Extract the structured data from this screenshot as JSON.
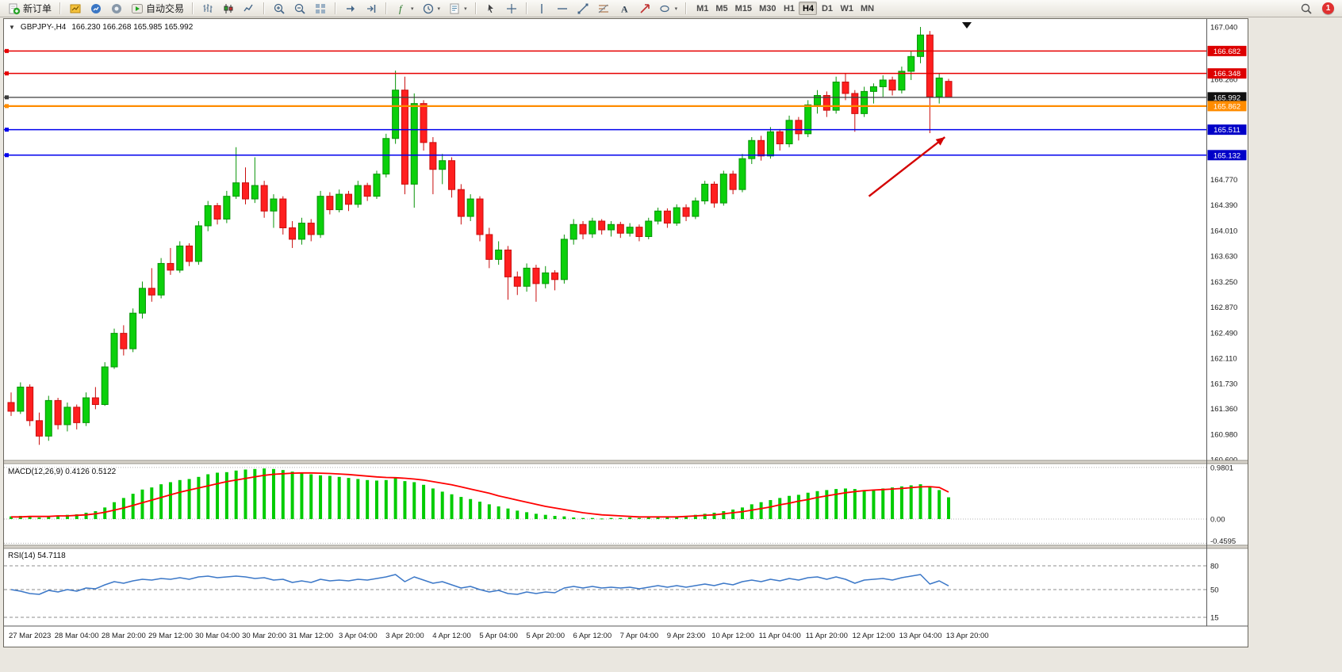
{
  "toolbar": {
    "new_order_label": "新订单",
    "autotrade_label": "自动交易",
    "timeframes": [
      "M1",
      "M5",
      "M15",
      "M30",
      "H1",
      "H4",
      "D1",
      "W1",
      "MN"
    ],
    "active_timeframe": "H4",
    "notification_count": "1",
    "icon_names": [
      "new-order",
      "charts",
      "market-watch",
      "navigator",
      "autotrade",
      "bar-chart",
      "candlestick-chart",
      "line-chart",
      "zoom-in",
      "zoom-out",
      "tile-windows",
      "auto-scroll",
      "chart-shift",
      "indicators",
      "periods",
      "templates",
      "cursor",
      "crosshair",
      "vertical-line",
      "horizontal-line",
      "trendline",
      "fibonacci",
      "text",
      "arrow-label",
      "shapes",
      "search",
      "notification"
    ]
  },
  "chart": {
    "symbol_title": "GBPJPY-,H4",
    "ohlc_display": "166.230 166.268 165.985 165.992"
  },
  "chart_data": {
    "type": "candlestick",
    "symbol": "GBPJPY-",
    "timeframe": "H4",
    "last_ohlc": {
      "open": 166.23,
      "high": 166.268,
      "low": 165.985,
      "close": 165.992
    },
    "colors": {
      "bull": "#0bd00b",
      "bull_stroke": "#089408",
      "bear": "#ff1f1f",
      "bear_stroke": "#c90e0e",
      "macd_hist": "#00cc00",
      "macd_signal": "#ff0000",
      "rsi": "#3c78c8"
    },
    "y_axis": {
      "min": 160.6,
      "max": 167.04,
      "ticks": [
        "167.040",
        "166.260",
        "164.770",
        "164.390",
        "164.010",
        "163.630",
        "163.250",
        "162.870",
        "162.490",
        "162.110",
        "161.730",
        "161.360",
        "160.980",
        "160.600"
      ]
    },
    "x_labels": [
      "27 Mar 2023",
      "28 Mar 04:00",
      "28 Mar 20:00",
      "29 Mar 12:00",
      "30 Mar 04:00",
      "30 Mar 20:00",
      "31 Mar 12:00",
      "3 Apr 04:00",
      "3 Apr 20:00",
      "4 Apr 12:00",
      "5 Apr 04:00",
      "5 Apr 20:00",
      "6 Apr 12:00",
      "7 Apr 04:00",
      "9 Apr 23:00",
      "10 Apr 12:00",
      "11 Apr 04:00",
      "11 Apr 20:00",
      "12 Apr 12:00",
      "13 Apr 04:00",
      "13 Apr 20:00"
    ],
    "price_lines": [
      {
        "price": 166.682,
        "label": "166.682",
        "color": "#e60000",
        "badge": "#dd0000",
        "width": 1.5
      },
      {
        "price": 166.348,
        "label": "166.348",
        "color": "#e60000",
        "badge": "#dd0000",
        "width": 1.5
      },
      {
        "price": 165.992,
        "label": "165.992",
        "color": "#3c3c3c",
        "badge": "#101010",
        "width": 1.2
      },
      {
        "price": 165.862,
        "label": "165.862",
        "color": "#ff8c00",
        "badge": "#ff8c00",
        "width": 2.2
      },
      {
        "price": 165.511,
        "label": "165.511",
        "color": "#0000ee",
        "badge": "#0000c8",
        "width": 1.5
      },
      {
        "price": 165.132,
        "label": "165.132",
        "color": "#0000ee",
        "badge": "#0000c8",
        "width": 1.5
      }
    ],
    "candles": [
      [
        161.45,
        161.6,
        161.25,
        161.32
      ],
      [
        161.32,
        161.75,
        161.28,
        161.68
      ],
      [
        161.68,
        161.72,
        161.1,
        161.18
      ],
      [
        161.18,
        161.3,
        160.82,
        160.95
      ],
      [
        160.95,
        161.55,
        160.88,
        161.48
      ],
      [
        161.48,
        161.52,
        161.05,
        161.12
      ],
      [
        161.12,
        161.45,
        161.02,
        161.38
      ],
      [
        161.38,
        161.42,
        161.05,
        161.15
      ],
      [
        161.15,
        161.6,
        161.1,
        161.52
      ],
      [
        161.52,
        161.68,
        161.35,
        161.42
      ],
      [
        161.42,
        162.05,
        161.4,
        161.98
      ],
      [
        161.98,
        162.55,
        161.95,
        162.48
      ],
      [
        162.48,
        162.6,
        162.15,
        162.25
      ],
      [
        162.25,
        162.85,
        162.2,
        162.78
      ],
      [
        162.78,
        163.25,
        162.7,
        163.15
      ],
      [
        163.15,
        163.45,
        162.95,
        163.05
      ],
      [
        163.05,
        163.6,
        163.0,
        163.52
      ],
      [
        163.52,
        163.75,
        163.35,
        163.42
      ],
      [
        163.42,
        163.85,
        163.38,
        163.78
      ],
      [
        163.78,
        163.82,
        163.48,
        163.55
      ],
      [
        163.55,
        164.15,
        163.5,
        164.08
      ],
      [
        164.08,
        164.45,
        164.0,
        164.38
      ],
      [
        164.38,
        164.42,
        164.1,
        164.18
      ],
      [
        164.18,
        164.6,
        164.12,
        164.52
      ],
      [
        164.52,
        165.25,
        164.48,
        164.72
      ],
      [
        164.72,
        164.95,
        164.4,
        164.48
      ],
      [
        164.48,
        165.1,
        164.42,
        164.68
      ],
      [
        164.68,
        164.75,
        164.2,
        164.3
      ],
      [
        164.3,
        164.55,
        164.05,
        164.48
      ],
      [
        164.48,
        164.52,
        163.95,
        164.05
      ],
      [
        164.05,
        164.15,
        163.75,
        163.88
      ],
      [
        163.88,
        164.2,
        163.8,
        164.12
      ],
      [
        164.12,
        164.18,
        163.85,
        163.95
      ],
      [
        163.95,
        164.6,
        163.9,
        164.52
      ],
      [
        164.52,
        164.58,
        164.25,
        164.32
      ],
      [
        164.32,
        164.62,
        164.28,
        164.55
      ],
      [
        164.55,
        164.6,
        164.3,
        164.4
      ],
      [
        164.4,
        164.75,
        164.35,
        164.68
      ],
      [
        164.68,
        164.72,
        164.45,
        164.52
      ],
      [
        164.52,
        164.9,
        164.48,
        164.85
      ],
      [
        164.85,
        165.45,
        164.8,
        165.38
      ],
      [
        165.38,
        166.39,
        165.3,
        166.1
      ],
      [
        166.1,
        166.3,
        164.55,
        164.7
      ],
      [
        164.7,
        166.05,
        164.35,
        165.9
      ],
      [
        165.9,
        165.95,
        165.2,
        165.32
      ],
      [
        165.32,
        165.4,
        164.55,
        164.92
      ],
      [
        164.92,
        165.15,
        164.7,
        165.05
      ],
      [
        165.05,
        165.1,
        164.5,
        164.62
      ],
      [
        164.62,
        164.7,
        164.1,
        164.22
      ],
      [
        164.22,
        164.55,
        164.15,
        164.48
      ],
      [
        164.48,
        164.52,
        163.85,
        163.95
      ],
      [
        163.95,
        164.05,
        163.45,
        163.58
      ],
      [
        163.58,
        163.85,
        163.5,
        163.72
      ],
      [
        163.72,
        163.78,
        162.98,
        163.32
      ],
      [
        163.32,
        163.4,
        163.05,
        163.18
      ],
      [
        163.18,
        163.52,
        163.1,
        163.45
      ],
      [
        163.45,
        163.5,
        162.95,
        163.22
      ],
      [
        163.22,
        163.48,
        163.15,
        163.38
      ],
      [
        163.38,
        163.42,
        163.12,
        163.28
      ],
      [
        163.28,
        163.95,
        163.22,
        163.88
      ],
      [
        163.88,
        164.18,
        163.8,
        164.1
      ],
      [
        164.1,
        164.15,
        163.88,
        163.96
      ],
      [
        163.96,
        164.2,
        163.9,
        164.15
      ],
      [
        164.15,
        164.18,
        163.95,
        164.02
      ],
      [
        164.02,
        164.15,
        163.92,
        164.1
      ],
      [
        164.1,
        164.14,
        163.9,
        163.97
      ],
      [
        163.97,
        164.12,
        163.92,
        164.06
      ],
      [
        164.06,
        164.1,
        163.85,
        163.92
      ],
      [
        163.92,
        164.2,
        163.88,
        164.15
      ],
      [
        164.15,
        164.35,
        164.1,
        164.3
      ],
      [
        164.3,
        164.34,
        164.05,
        164.12
      ],
      [
        164.12,
        164.4,
        164.08,
        164.35
      ],
      [
        164.35,
        164.4,
        164.15,
        164.22
      ],
      [
        164.22,
        164.5,
        164.18,
        164.45
      ],
      [
        164.45,
        164.75,
        164.4,
        164.7
      ],
      [
        164.7,
        164.74,
        164.35,
        164.42
      ],
      [
        164.42,
        164.9,
        164.38,
        164.85
      ],
      [
        164.85,
        164.9,
        164.55,
        164.62
      ],
      [
        164.62,
        165.15,
        164.58,
        165.08
      ],
      [
        165.08,
        165.4,
        165.0,
        165.35
      ],
      [
        165.35,
        165.42,
        165.05,
        165.12
      ],
      [
        165.12,
        165.55,
        165.08,
        165.48
      ],
      [
        165.48,
        165.52,
        165.2,
        165.3
      ],
      [
        165.3,
        165.72,
        165.25,
        165.65
      ],
      [
        165.65,
        165.7,
        165.35,
        165.45
      ],
      [
        165.45,
        165.95,
        165.4,
        165.88
      ],
      [
        165.88,
        166.1,
        165.75,
        166.02
      ],
      [
        166.02,
        166.08,
        165.7,
        165.8
      ],
      [
        165.8,
        166.3,
        165.75,
        166.22
      ],
      [
        166.22,
        166.35,
        165.95,
        166.05
      ],
      [
        166.05,
        166.1,
        165.48,
        165.75
      ],
      [
        165.75,
        166.15,
        165.7,
        166.08
      ],
      [
        166.08,
        166.2,
        165.9,
        166.15
      ],
      [
        166.15,
        166.32,
        166.0,
        166.25
      ],
      [
        166.25,
        166.3,
        166.02,
        166.1
      ],
      [
        166.1,
        166.45,
        166.05,
        166.38
      ],
      [
        166.38,
        166.68,
        166.25,
        166.6
      ],
      [
        166.6,
        167.04,
        166.5,
        166.92
      ],
      [
        166.92,
        166.98,
        165.46,
        166.0
      ],
      [
        166.0,
        166.35,
        165.9,
        166.28
      ],
      [
        166.23,
        166.268,
        165.985,
        165.992
      ]
    ],
    "indicators": {
      "macd": {
        "label": "MACD(12,26,9) 0.4126 0.5122",
        "main_value": 0.4126,
        "signal_value": 0.5122,
        "scale_max": 0.9801,
        "scale_min": -0.4595,
        "axis_labels": [
          "0.9801",
          "0.00",
          "-0.4595"
        ],
        "histogram": [
          0.05,
          0.06,
          0.04,
          0.03,
          0.05,
          0.07,
          0.08,
          0.09,
          0.12,
          0.15,
          0.22,
          0.32,
          0.4,
          0.48,
          0.56,
          0.6,
          0.66,
          0.7,
          0.74,
          0.76,
          0.8,
          0.85,
          0.88,
          0.89,
          0.92,
          0.94,
          0.95,
          0.96,
          0.95,
          0.93,
          0.9,
          0.88,
          0.85,
          0.83,
          0.82,
          0.8,
          0.78,
          0.76,
          0.74,
          0.73,
          0.74,
          0.78,
          0.72,
          0.7,
          0.65,
          0.58,
          0.52,
          0.47,
          0.42,
          0.38,
          0.33,
          0.28,
          0.24,
          0.2,
          0.16,
          0.13,
          0.1,
          0.08,
          0.06,
          0.05,
          0.03,
          0.02,
          0.02,
          0.01,
          0.02,
          0.02,
          0.03,
          0.02,
          0.03,
          0.04,
          0.04,
          0.05,
          0.05,
          0.08,
          0.1,
          0.12,
          0.15,
          0.18,
          0.22,
          0.28,
          0.32,
          0.36,
          0.4,
          0.44,
          0.46,
          0.5,
          0.53,
          0.55,
          0.57,
          0.58,
          0.57,
          0.55,
          0.56,
          0.58,
          0.6,
          0.62,
          0.64,
          0.66,
          0.62,
          0.55,
          0.4126
        ],
        "signal": [
          0.04,
          0.04,
          0.05,
          0.05,
          0.05,
          0.06,
          0.06,
          0.07,
          0.08,
          0.1,
          0.13,
          0.17,
          0.21,
          0.26,
          0.31,
          0.36,
          0.41,
          0.46,
          0.51,
          0.55,
          0.59,
          0.63,
          0.67,
          0.71,
          0.74,
          0.77,
          0.8,
          0.83,
          0.85,
          0.86,
          0.87,
          0.875,
          0.875,
          0.87,
          0.865,
          0.855,
          0.845,
          0.83,
          0.815,
          0.8,
          0.79,
          0.785,
          0.775,
          0.76,
          0.74,
          0.71,
          0.68,
          0.65,
          0.61,
          0.57,
          0.53,
          0.49,
          0.44,
          0.4,
          0.36,
          0.32,
          0.28,
          0.24,
          0.21,
          0.18,
          0.15,
          0.12,
          0.1,
          0.08,
          0.07,
          0.06,
          0.05,
          0.04,
          0.04,
          0.04,
          0.04,
          0.04,
          0.05,
          0.06,
          0.07,
          0.08,
          0.1,
          0.12,
          0.14,
          0.17,
          0.2,
          0.23,
          0.27,
          0.3,
          0.34,
          0.37,
          0.41,
          0.44,
          0.47,
          0.5,
          0.52,
          0.54,
          0.55,
          0.56,
          0.57,
          0.58,
          0.595,
          0.61,
          0.615,
          0.6,
          0.5122
        ]
      },
      "rsi": {
        "label": "RSI(14) 54.7118",
        "value": 54.7118,
        "levels": [
          80,
          50,
          15
        ],
        "values": [
          50,
          48,
          45,
          44,
          49,
          47,
          50,
          48,
          52,
          51,
          56,
          60,
          58,
          61,
          63,
          62,
          64,
          63,
          65,
          63,
          66,
          67,
          65,
          66,
          67,
          66,
          64,
          65,
          62,
          63,
          59,
          61,
          59,
          63,
          61,
          62,
          61,
          63,
          62,
          64,
          66,
          69,
          60,
          66,
          62,
          58,
          60,
          56,
          52,
          54,
          50,
          47,
          49,
          45,
          44,
          47,
          45,
          47,
          46,
          52,
          54,
          52,
          54,
          52,
          53,
          52,
          53,
          51,
          53,
          55,
          53,
          55,
          53,
          55,
          57,
          55,
          58,
          56,
          60,
          62,
          60,
          63,
          61,
          64,
          62,
          65,
          66,
          63,
          66,
          63,
          58,
          62,
          63,
          64,
          62,
          65,
          67,
          69,
          57,
          61,
          54.7
        ]
      }
    },
    "annotation_arrow": {
      "from_index": 91.5,
      "from_price": 164.52,
      "to_index": 99.6,
      "to_price": 165.4,
      "color": "#d40000"
    }
  }
}
